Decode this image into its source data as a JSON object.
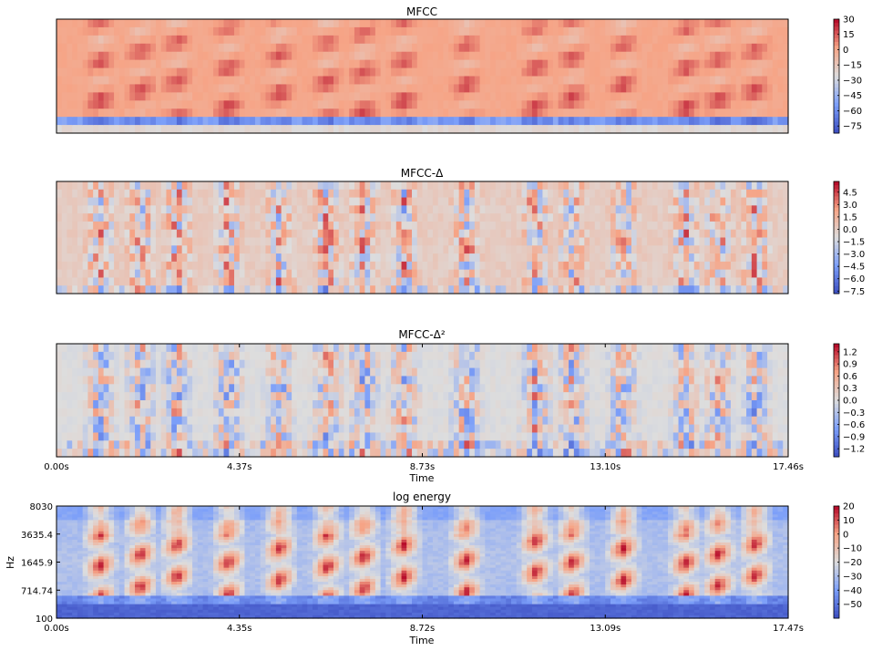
{
  "chart_data": [
    {
      "type": "heatmap",
      "title": "MFCC",
      "colormap": "coolwarm",
      "show_x_ticks": false,
      "colorbar": {
        "min": -82,
        "max": 30,
        "ticks": [
          "30",
          "15",
          "0",
          "−15",
          "−30",
          "−45",
          "−60",
          "−75"
        ],
        "tick_values": [
          30,
          15,
          0,
          -15,
          -30,
          -45,
          -60,
          -75
        ]
      }
    },
    {
      "type": "heatmap",
      "title": "MFCC-Δ",
      "colormap": "coolwarm",
      "show_x_ticks": false,
      "colorbar": {
        "min": -7.8,
        "max": 5.8,
        "ticks": [
          "4.5",
          "3.0",
          "1.5",
          "0.0",
          "−1.5",
          "−3.0",
          "−4.5",
          "−6.0",
          "−7.5"
        ],
        "tick_values": [
          4.5,
          3.0,
          1.5,
          0.0,
          -1.5,
          -3.0,
          -4.5,
          -6.0,
          -7.5
        ]
      }
    },
    {
      "type": "heatmap",
      "title": "MFCC-Δ²",
      "colormap": "coolwarm",
      "show_x_ticks": true,
      "xlabel": "Time",
      "x_ticks": [
        "0.00s",
        "4.37s",
        "8.73s",
        "13.10s",
        "17.46s"
      ],
      "colorbar": {
        "min": -1.4,
        "max": 1.4,
        "ticks": [
          "1.2",
          "0.9",
          "0.6",
          "0.3",
          "0.0",
          "−0.3",
          "−0.6",
          "−0.9",
          "−1.2"
        ],
        "tick_values": [
          1.2,
          0.9,
          0.6,
          0.3,
          0.0,
          -0.3,
          -0.6,
          -0.9,
          -1.2
        ]
      }
    },
    {
      "type": "heatmap",
      "title": "log energy",
      "colormap": "coolwarm",
      "show_x_ticks": true,
      "xlabel": "Time",
      "ylabel": "Hz",
      "x_ticks": [
        "0.00s",
        "4.35s",
        "8.72s",
        "13.09s",
        "17.47s"
      ],
      "y_ticks": [
        "8030",
        "3635.4",
        "1645.9",
        "714.74",
        "100"
      ],
      "colorbar": {
        "min": -60,
        "max": 20,
        "ticks": [
          "20",
          "10",
          "0",
          "−10",
          "−20",
          "−30",
          "−40",
          "−50"
        ],
        "tick_values": [
          20,
          10,
          0,
          -10,
          -20,
          -30,
          -40,
          -50
        ]
      }
    }
  ]
}
